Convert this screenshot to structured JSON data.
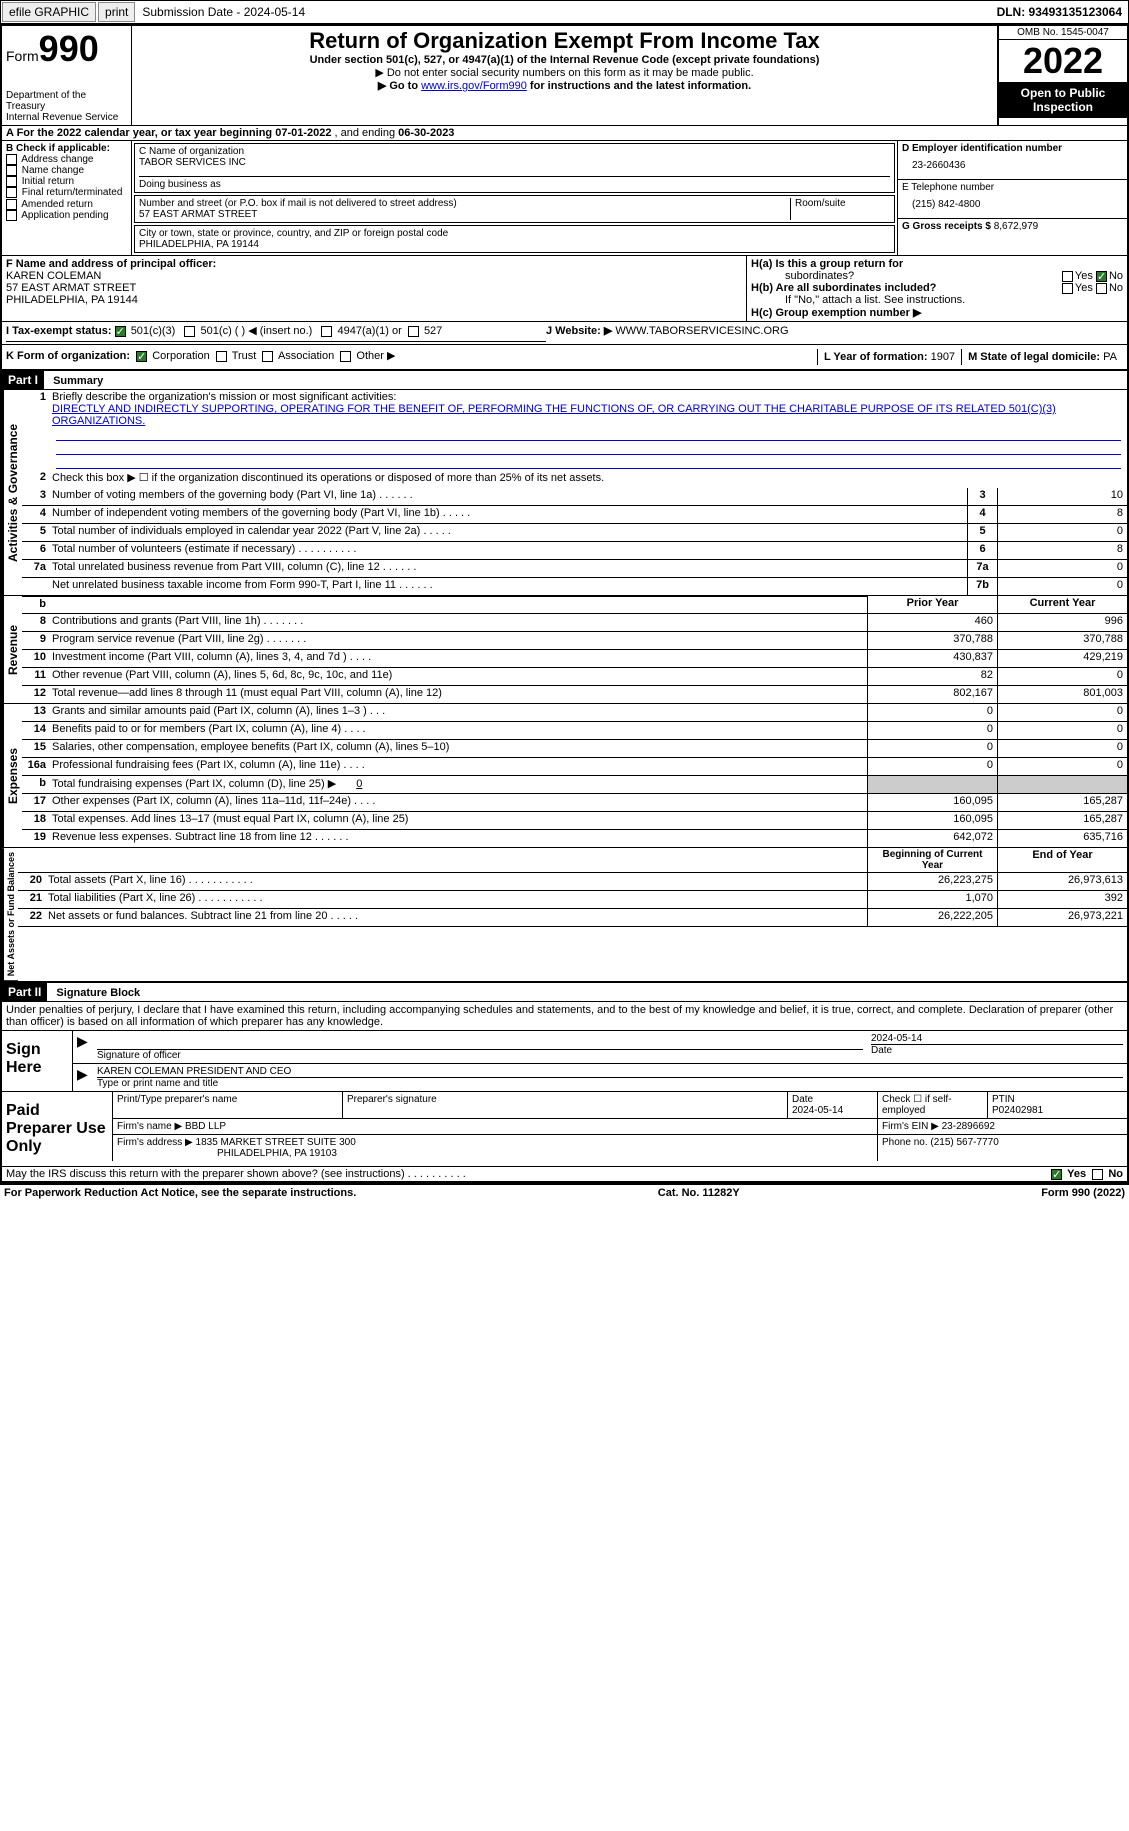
{
  "topbar": {
    "efile": "efile GRAPHIC",
    "print": "print",
    "subdate_label": "Submission Date - 2024-05-14",
    "dln": "DLN: 93493135123064"
  },
  "header": {
    "form_word": "Form",
    "form_num": "990",
    "title": "Return of Organization Exempt From Income Tax",
    "subtitle": "Under section 501(c), 527, or 4947(a)(1) of the Internal Revenue Code (except private foundations)",
    "ssn": "▶ Do not enter social security numbers on this form as it may be made public.",
    "goto_pre": "▶ Go to ",
    "goto_link": "www.irs.gov/Form990",
    "goto_post": " for instructions and the latest information.",
    "dept": "Department of the Treasury",
    "irs": "Internal Revenue Service",
    "omb": "OMB No. 1545-0047",
    "year": "2022",
    "open": "Open to Public Inspection"
  },
  "rowA": {
    "text_a": "A For the 2022 calendar year, or tax year beginning ",
    "begin": "07-01-2022",
    "text_b": "   , and ending ",
    "end": "06-30-2023"
  },
  "colB": {
    "label": "B Check if applicable:",
    "opts": [
      "Address change",
      "Name change",
      "Initial return",
      "Final return/terminated",
      "Amended return",
      "Application pending"
    ]
  },
  "colC": {
    "name_label": "C Name of organization",
    "name": "TABOR SERVICES INC",
    "dba_label": "Doing business as",
    "addr_label": "Number and street (or P.O. box if mail is not delivered to street address)",
    "addr": "57 EAST ARMAT STREET",
    "room_label": "Room/suite",
    "city_label": "City or town, state or province, country, and ZIP or foreign postal code",
    "city": "PHILADELPHIA, PA  19144"
  },
  "colD": {
    "ein_label": "D Employer identification number",
    "ein": "23-2660436",
    "phone_label": "E Telephone number",
    "phone": "(215) 842-4800",
    "gross_label": "G Gross receipts $",
    "gross": "8,672,979"
  },
  "rowF": {
    "label": "F  Name and address of principal officer:",
    "name": "KAREN COLEMAN",
    "addr1": "57 EAST ARMAT STREET",
    "addr2": "PHILADELPHIA, PA  19144"
  },
  "rowH": {
    "ha": "H(a)  Is this a group return for",
    "ha2": "subordinates?",
    "hb": "H(b)  Are all subordinates included?",
    "hb2": "If \"No,\" attach a list. See instructions.",
    "hc": "H(c)  Group exemption number ▶",
    "yes": "Yes",
    "no": "No"
  },
  "rowI": {
    "label": "I    Tax-exempt status:",
    "c3": "501(c)(3)",
    "c": "501(c) (  ) ◀ (insert no.)",
    "a1": "4947(a)(1) or",
    "s527": "527"
  },
  "rowJ": {
    "label": "J    Website: ▶",
    "url": " WWW.TABORSERVICESINC.ORG"
  },
  "rowK": {
    "label": "K Form of organization:",
    "corp": "Corporation",
    "trust": "Trust",
    "assoc": "Association",
    "other": "Other ▶",
    "l_label": "L Year of formation: ",
    "l_val": "1907",
    "m_label": "M State of legal domicile: ",
    "m_val": "PA"
  },
  "part1": {
    "header": "Part I",
    "title": "Summary",
    "q1": "Briefly describe the organization's mission or most significant activities:",
    "mission": "DIRECTLY AND INDIRECTLY SUPPORTING, OPERATING FOR THE BENEFIT OF, PERFORMING THE FUNCTIONS OF, OR CARRYING OUT THE CHARITABLE PURPOSE OF ITS RELATED 501(C)(3) ORGANIZATIONS.",
    "q2": "Check this box ▶ ☐  if the organization discontinued its operations or disposed of more than 25% of its net assets.",
    "rows_gov": [
      {
        "n": "3",
        "t": "Number of voting members of the governing body (Part VI, line 1a)  .    .    .    .    .    .",
        "box": "3",
        "v": "10"
      },
      {
        "n": "4",
        "t": "Number of independent voting members of the governing body (Part VI, line 1b)  .    .    .    .    .",
        "box": "4",
        "v": "8"
      },
      {
        "n": "5",
        "t": "Total number of individuals employed in calendar year 2022 (Part V, line 2a)  .    .    .    .    .",
        "box": "5",
        "v": "0"
      },
      {
        "n": "6",
        "t": "Total number of volunteers (estimate if necessary)    .    .    .    .    .    .    .    .    .    .",
        "box": "6",
        "v": "8"
      },
      {
        "n": "7a",
        "t": "Total unrelated business revenue from Part VIII, column (C), line 12   .    .    .    .    .    .",
        "box": "7a",
        "v": "0"
      },
      {
        "n": "",
        "t": "Net unrelated business taxable income from Form 990-T, Part I, line 11  .    .    .    .    .    .",
        "box": "7b",
        "v": "0"
      }
    ],
    "prior_label": "Prior Year",
    "current_label": "Current Year",
    "rows_rev": [
      {
        "n": "8",
        "t": "Contributions and grants (Part VIII, line 1h)   .    .    .    .    .    .    .",
        "p": "460",
        "v": "996"
      },
      {
        "n": "9",
        "t": "Program service revenue (Part VIII, line 2g)   .    .    .    .    .    .    .",
        "p": "370,788",
        "v": "370,788"
      },
      {
        "n": "10",
        "t": "Investment income (Part VIII, column (A), lines 3, 4, and 7d )   .    .    .    .",
        "p": "430,837",
        "v": "429,219"
      },
      {
        "n": "11",
        "t": "Other revenue (Part VIII, column (A), lines 5, 6d, 8c, 9c, 10c, and 11e)",
        "p": "82",
        "v": "0"
      },
      {
        "n": "12",
        "t": "Total revenue—add lines 8 through 11 (must equal Part VIII, column (A), line 12)",
        "p": "802,167",
        "v": "801,003"
      }
    ],
    "rows_exp": [
      {
        "n": "13",
        "t": "Grants and similar amounts paid (Part IX, column (A), lines 1–3 )  .    .    .",
        "p": "0",
        "v": "0"
      },
      {
        "n": "14",
        "t": "Benefits paid to or for members (Part IX, column (A), line 4)  .    .    .    .",
        "p": "0",
        "v": "0"
      },
      {
        "n": "15",
        "t": "Salaries, other compensation, employee benefits (Part IX, column (A), lines 5–10)",
        "p": "0",
        "v": "0"
      },
      {
        "n": "16a",
        "t": "Professional fundraising fees (Part IX, column (A), line 11e)  .    .    .    .",
        "p": "0",
        "v": "0"
      },
      {
        "n": "b",
        "t": "Total fundraising expenses (Part IX, column (D), line 25) ▶",
        "p": "",
        "v": "",
        "shade": true,
        "inline": "0"
      },
      {
        "n": "17",
        "t": "Other expenses (Part IX, column (A), lines 11a–11d, 11f–24e)  .    .    .    .",
        "p": "160,095",
        "v": "165,287"
      },
      {
        "n": "18",
        "t": "Total expenses. Add lines 13–17 (must equal Part IX, column (A), line 25)",
        "p": "160,095",
        "v": "165,287"
      },
      {
        "n": "19",
        "t": "Revenue less expenses. Subtract line 18 from line 12  .    .    .    .    .    .",
        "p": "642,072",
        "v": "635,716"
      }
    ],
    "begin_label": "Beginning of Current Year",
    "end_label": "End of Year",
    "rows_net": [
      {
        "n": "20",
        "t": "Total assets (Part X, line 16)  .    .    .    .    .    .    .    .    .    .    .",
        "p": "26,223,275",
        "v": "26,973,613"
      },
      {
        "n": "21",
        "t": "Total liabilities (Part X, line 26)  .    .    .    .    .    .    .    .    .    .    .",
        "p": "1,070",
        "v": "392"
      },
      {
        "n": "22",
        "t": "Net assets or fund balances. Subtract line 21 from line 20  .    .    .    .    .",
        "p": "26,222,205",
        "v": "26,973,221"
      }
    ],
    "vert_gov": "Activities & Governance",
    "vert_rev": "Revenue",
    "vert_exp": "Expenses",
    "vert_net": "Net Assets or Fund Balances"
  },
  "part2": {
    "header": "Part II",
    "title": "Signature Block",
    "decl": "Under penalties of perjury, I declare that I have examined this return, including accompanying schedules and statements, and to the best of my knowledge and belief, it is true, correct, and complete. Declaration of preparer (other than officer) is based on all information of which preparer has any knowledge.",
    "sign_here": "Sign Here",
    "sig_officer": "Signature of officer",
    "sig_date": "2024-05-14",
    "date_label": "Date",
    "officer_name": "KAREN COLEMAN  PRESIDENT AND CEO",
    "type_label": "Type or print name and title",
    "paid": "Paid Preparer Use Only",
    "prep_name_label": "Print/Type preparer's name",
    "prep_sig_label": "Preparer's signature",
    "prep_date_label": "Date",
    "prep_date": "2024-05-14",
    "check_if": "Check ☐ if self-employed",
    "ptin_label": "PTIN",
    "ptin": "P02402981",
    "firm_name_label": "Firm's name    ▶",
    "firm_name": "BBD LLP",
    "firm_ein_label": "Firm's EIN ▶",
    "firm_ein": "23-2896692",
    "firm_addr_label": "Firm's address ▶",
    "firm_addr1": "1835 MARKET STREET SUITE 300",
    "firm_addr2": "PHILADELPHIA, PA  19103",
    "phone_label": "Phone no. ",
    "phone": "(215) 567-7770",
    "discuss": "May the IRS discuss this return with the preparer shown above? (see instructions)   .    .    .    .    .    .    .    .    .    .",
    "yes": "Yes",
    "no": "No"
  },
  "footer": {
    "pra": "For Paperwork Reduction Act Notice, see the separate instructions.",
    "cat": "Cat. No. 11282Y",
    "form": "Form 990 (2022)"
  }
}
